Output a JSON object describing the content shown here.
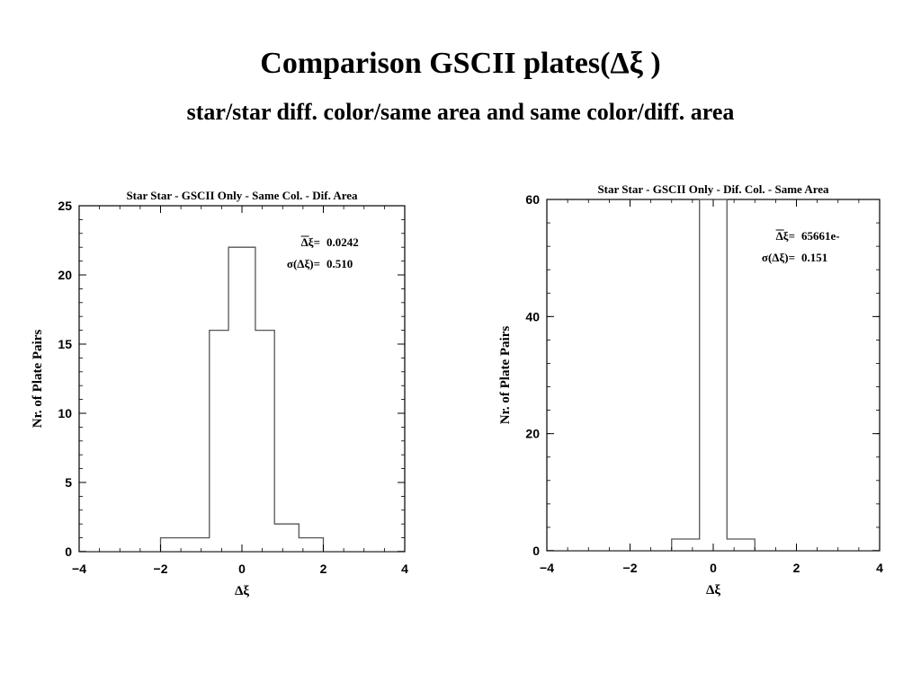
{
  "slide": {
    "title": "Comparison GSCII plates(Δξ )",
    "subtitle": "star/star diff. color/same area and same color/diff. area"
  },
  "chart_data": [
    {
      "type": "histogram",
      "title": "Star Star - GSCII Only - Same Col. - Dif. Area",
      "xlabel": "Δξ",
      "ylabel": "Nr. of Plate Pairs",
      "xlim": [
        -4,
        4
      ],
      "ylim": [
        0,
        25
      ],
      "xticks": [
        -4,
        -2,
        0,
        2,
        4
      ],
      "yticks": [
        0,
        5,
        10,
        15,
        20,
        25
      ],
      "bin_edges": [
        -2,
        -0.8,
        -0.33,
        0.33,
        0.8,
        1.4,
        2
      ],
      "counts": [
        1,
        16,
        22,
        16,
        2,
        1
      ],
      "grid": false,
      "annotations": [
        {
          "label": "Δξ=",
          "value": "0.0242"
        },
        {
          "label": "σ(Δξ)=",
          "value": "0.510"
        }
      ]
    },
    {
      "type": "histogram",
      "title": "Star Star - GSCII Only - Dif. Col. - Same Area",
      "xlabel": "Δξ",
      "ylabel": "Nr. of Plate Pairs",
      "xlim": [
        -4,
        4
      ],
      "ylim": [
        0,
        60
      ],
      "xticks": [
        -4,
        -2,
        0,
        2,
        4
      ],
      "yticks": [
        0,
        20,
        40,
        60
      ],
      "bin_edges": [
        -1,
        -0.33,
        0.33,
        1
      ],
      "counts": [
        2,
        60,
        2
      ],
      "grid": false,
      "annotations": [
        {
          "label": "Δξ=",
          "value": "65661e-"
        },
        {
          "label": "σ(Δξ)=",
          "value": "0.151"
        }
      ]
    }
  ]
}
